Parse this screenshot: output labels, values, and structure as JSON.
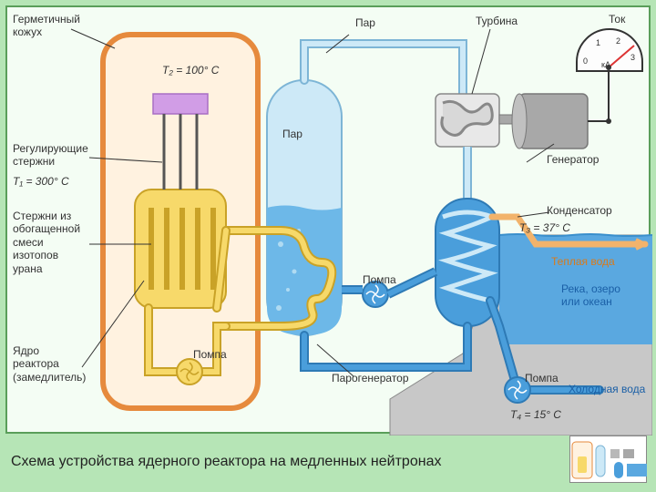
{
  "diagram": {
    "type": "infographic",
    "title_caption": "Схема устройства ядерного реактора на медленных нейтронах",
    "background_outer": "#b6e5b6",
    "background_inner": "#f4fdf4",
    "border_color": "#5a9e5a",
    "labels": {
      "hermetic_casing": "Герметичный\nкожух",
      "steam_top": "Пар",
      "turbine": "Турбина",
      "current": "Ток",
      "control_rods": "Регулирующие\nстержни",
      "steam_vessel": "Пар",
      "generator": "Генератор",
      "fuel_rods": "Стержни из\nобогащенной\nсмеси\nизотопов\nурана",
      "condenser": "Конденсатор",
      "warm_water": "Теплая вода",
      "river": "Река, озеро\nили океан",
      "reactor_core": "Ядро\nреактора\n(замедлитель)",
      "pump1": "Помпа",
      "steam_generator": "Парогенератор",
      "pump2": "Помпа",
      "pump3": "Помпа",
      "cold_water": "Холодная вода"
    },
    "temps": {
      "T1": "T₁ = 300° C",
      "T2": "T₂ = 100° C",
      "T3": "T₃ = 37° C",
      "T4": "T₄ = 15° C"
    },
    "gauge": {
      "unit": "кА",
      "marks": [
        "0",
        "1",
        "2",
        "3"
      ]
    },
    "colors": {
      "casing_border": "#e68a3d",
      "casing_fill": "#fff2e0",
      "reactor_body": "#f7d96a",
      "reactor_outline": "#c9a227",
      "rod_cap": "#d19de6",
      "rod_stick": "#555",
      "hot_pipe": "#f7d96a",
      "hot_pipe_outline": "#c9a227",
      "steam_vessel": "#cde9f7",
      "steam_vessel_outline": "#7db5d6",
      "water": "#6db8e8",
      "water_dark": "#3a8fcc",
      "coil": "#d8d8d8",
      "turbine_body": "#b8b8b8",
      "generator_body": "#a8a8a8",
      "condenser": "#4a9edb",
      "gauge_face": "#fdfdfd",
      "gauge_needle": "#d33",
      "pump_blue": "#4a9edb",
      "coast": "#c8c8c8",
      "sea": "#5aa8e0"
    },
    "positions_note": "All positions approximate, read from 720x540 schematic"
  }
}
